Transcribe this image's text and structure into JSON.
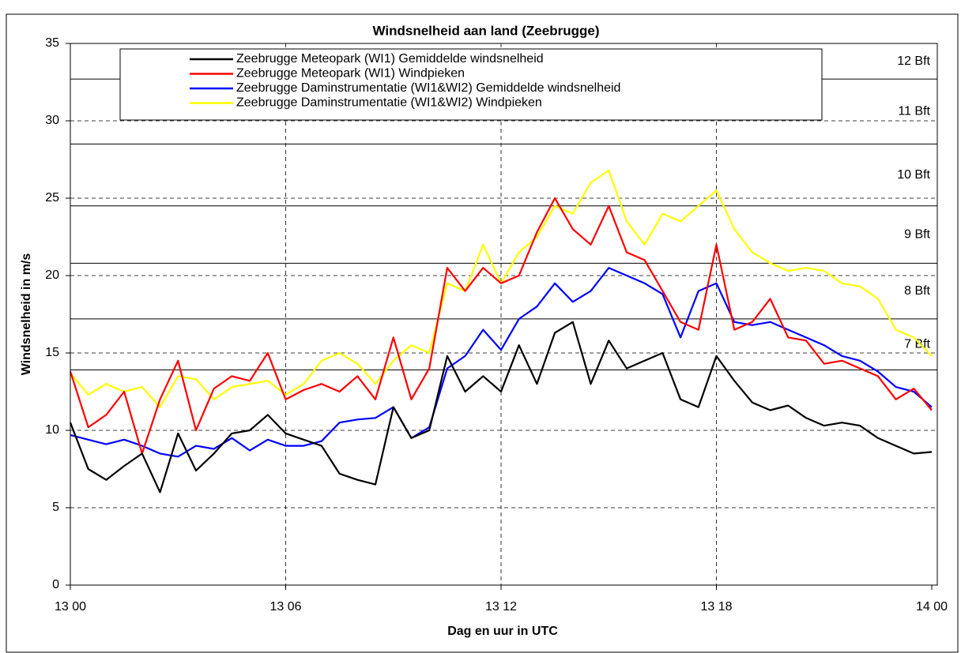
{
  "chart_data": {
    "type": "line",
    "title": "Windsnelheid aan land (Zeebrugge)",
    "x_label": "Dag en uur in UTC",
    "y_label": "Windsnelheid in m/s",
    "x": [
      0,
      0.5,
      1,
      1.5,
      2,
      2.5,
      3,
      3.5,
      4,
      4.5,
      5,
      5.5,
      6,
      6.5,
      7,
      7.5,
      8,
      8.5,
      9,
      9.5,
      10,
      10.5,
      11,
      11.5,
      12,
      12.5,
      13,
      13.5,
      14,
      14.5,
      15,
      15.5,
      16,
      16.5,
      17,
      17.5,
      18,
      18.5,
      19,
      19.5,
      20,
      20.5,
      21,
      21.5,
      22,
      22.5,
      23,
      23.5,
      24
    ],
    "xlim": [
      0,
      24
    ],
    "xticks": [
      {
        "value": 0,
        "label": "13 00"
      },
      {
        "value": 6,
        "label": "13 06"
      },
      {
        "value": 12,
        "label": "13 12"
      },
      {
        "value": 18,
        "label": "13 18"
      },
      {
        "value": 24,
        "label": "14 00"
      }
    ],
    "ylim": [
      0,
      35
    ],
    "yticks": [
      0,
      5,
      10,
      15,
      20,
      25,
      30,
      35
    ],
    "grid": true,
    "bft": [
      {
        "label": "7 Bft",
        "value": 13.9
      },
      {
        "label": "8 Bft",
        "value": 17.2
      },
      {
        "label": "9 Bft",
        "value": 20.8
      },
      {
        "label": "10 Bft",
        "value": 24.5
      },
      {
        "label": "11 Bft",
        "value": 28.5
      },
      {
        "label": "12 Bft",
        "value": 32.7
      }
    ],
    "series": [
      {
        "name": "Zeebrugge Meteopark (WI1) Gemiddelde windsnelheid",
        "color": "#000000",
        "values": [
          10.5,
          7.5,
          6.8,
          7.7,
          8.5,
          6.0,
          9.8,
          7.4,
          8.5,
          9.8,
          10.0,
          11.0,
          9.8,
          9.4,
          9.0,
          7.2,
          6.8,
          6.5,
          11.5,
          9.5,
          10.0,
          14.8,
          12.5,
          13.5,
          12.5,
          15.5,
          13.0,
          16.3,
          17.0,
          13.0,
          15.8,
          14.0,
          14.5,
          15.0,
          12.0,
          11.5,
          14.8,
          13.2,
          11.8,
          11.3,
          11.6,
          10.8,
          10.3,
          10.5,
          10.3,
          9.5,
          9.0,
          8.5,
          8.6
        ]
      },
      {
        "name": "Zeebrugge Meteopark (WI1) Windpieken",
        "color": "#ff0000",
        "values": [
          13.8,
          10.2,
          11.0,
          12.5,
          8.5,
          12.0,
          14.5,
          10.0,
          12.7,
          13.5,
          13.2,
          15.0,
          12.0,
          12.6,
          13.0,
          12.5,
          13.5,
          12.0,
          16.0,
          12.0,
          14.0,
          20.5,
          19.0,
          20.5,
          19.5,
          20.0,
          22.8,
          25.0,
          23.0,
          22.0,
          24.5,
          21.5,
          21.0,
          19.0,
          17.0,
          16.5,
          22.0,
          16.5,
          17.0,
          18.5,
          16.0,
          15.8,
          14.3,
          14.5,
          14.0,
          13.5,
          12.0,
          12.7,
          11.3
        ]
      },
      {
        "name": "Zeebrugge Daminstrumentatie (WI1&WI2) Gemiddelde windsnelheid",
        "color": "#0000ff",
        "values": [
          9.7,
          9.4,
          9.1,
          9.4,
          9.0,
          8.5,
          8.3,
          9.0,
          8.8,
          9.5,
          8.7,
          9.4,
          9.0,
          9.0,
          9.3,
          10.5,
          10.7,
          10.8,
          11.5,
          9.5,
          10.2,
          14.0,
          14.8,
          16.5,
          15.2,
          17.2,
          18.0,
          19.5,
          18.3,
          19.0,
          20.5,
          20.0,
          19.5,
          18.8,
          16.0,
          19.0,
          19.5,
          17.0,
          16.8,
          17.0,
          16.5,
          16.0,
          15.5,
          14.8,
          14.5,
          13.8,
          12.8,
          12.5,
          11.5
        ]
      },
      {
        "name": "Zeebrugge Daminstrumentatie (WI1&WI2) Windpieken",
        "color": "#ffff00",
        "values": [
          13.7,
          12.3,
          13.0,
          12.5,
          12.8,
          11.5,
          13.5,
          13.3,
          12.0,
          12.8,
          13.0,
          13.2,
          12.3,
          13.0,
          14.5,
          15.0,
          14.3,
          13.0,
          14.5,
          15.5,
          15.0,
          19.5,
          19.0,
          22.0,
          19.5,
          21.5,
          22.5,
          24.5,
          24.0,
          26.0,
          26.8,
          23.5,
          22.0,
          24.0,
          23.5,
          24.5,
          25.5,
          23.0,
          21.5,
          20.8,
          20.3,
          20.5,
          20.3,
          19.5,
          19.3,
          18.5,
          16.5,
          16.0,
          14.8
        ]
      }
    ]
  }
}
